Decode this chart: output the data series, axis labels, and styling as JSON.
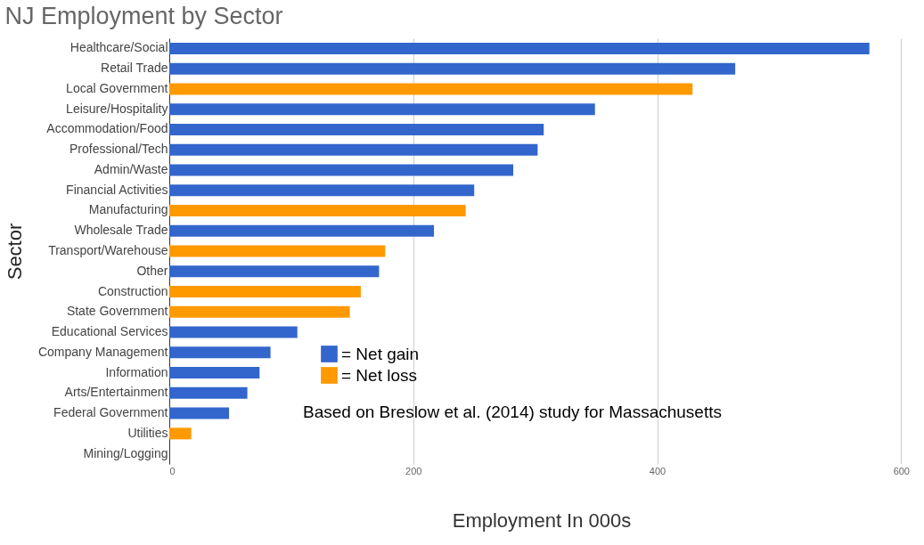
{
  "chart_data": {
    "type": "bar",
    "orientation": "horizontal",
    "title": "NJ Employment by Sector",
    "xlabel": "Employment In 000s",
    "ylabel": "Sector",
    "categories": [
      "Healthcare/Social",
      "Retail Trade",
      "Local Government",
      "Leisure/Hospitality",
      "Accommodation/Food",
      "Professional/Tech",
      "Admin/Waste",
      "Financial Activities",
      "Manufacturing",
      "Wholesale Trade",
      "Transport/Warehouse",
      "Other",
      "Construction",
      "State Government",
      "Educational Services",
      "Company Management",
      "Information",
      "Arts/Entertainment",
      "Federal Government",
      "Utilities",
      "Mining/Logging"
    ],
    "series": [
      {
        "name": "= Net gain",
        "color": "#3366cc",
        "values": [
          574,
          464,
          null,
          349,
          307,
          302,
          282,
          250,
          null,
          217,
          null,
          172,
          null,
          null,
          105,
          83,
          74,
          64,
          49,
          null,
          0
        ]
      },
      {
        "name": "= Net loss",
        "color": "#ff9900",
        "values": [
          null,
          null,
          429,
          null,
          null,
          null,
          null,
          null,
          243,
          null,
          177,
          null,
          157,
          148,
          null,
          null,
          null,
          null,
          null,
          18,
          null
        ]
      }
    ],
    "xlim": [
      0,
      610
    ],
    "xticks": [
      0,
      200,
      400,
      600
    ],
    "grid": "x",
    "legend": "bottom",
    "annotations": [
      "Based on Breslow et al. (2014) study for Massachusetts"
    ]
  }
}
